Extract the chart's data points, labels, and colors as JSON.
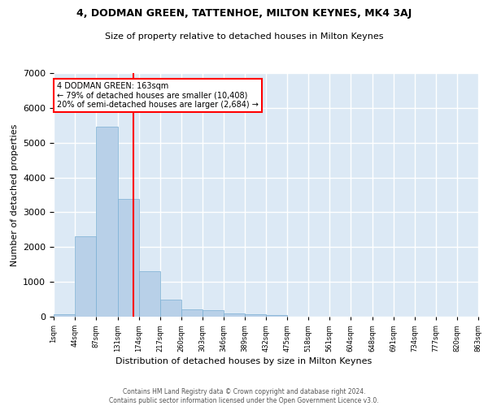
{
  "title1": "4, DODMAN GREEN, TATTENHOE, MILTON KEYNES, MK4 3AJ",
  "title2": "Size of property relative to detached houses in Milton Keynes",
  "xlabel": "Distribution of detached houses by size in Milton Keynes",
  "ylabel": "Number of detached properties",
  "bar_color": "#b8d0e8",
  "bar_edge_color": "#7aafd4",
  "background_color": "#dce9f5",
  "grid_color": "white",
  "vline_x": 163,
  "vline_color": "red",
  "annotation_text": "4 DODMAN GREEN: 163sqm\n← 79% of detached houses are smaller (10,408)\n20% of semi-detached houses are larger (2,684) →",
  "annotation_box_color": "white",
  "annotation_box_edge_color": "red",
  "footnote": "Contains HM Land Registry data © Crown copyright and database right 2024.\nContains public sector information licensed under the Open Government Licence v3.0.",
  "bin_edges": [
    1,
    44,
    87,
    131,
    174,
    217,
    260,
    303,
    346,
    389,
    432,
    475,
    518,
    561,
    604,
    648,
    691,
    734,
    777,
    820,
    863
  ],
  "bar_heights": [
    75,
    2300,
    5450,
    3380,
    1310,
    490,
    210,
    185,
    100,
    65,
    40,
    0,
    0,
    0,
    0,
    0,
    0,
    0,
    0,
    0
  ],
  "ylim": [
    0,
    7000
  ],
  "xlim": [
    1,
    863
  ]
}
